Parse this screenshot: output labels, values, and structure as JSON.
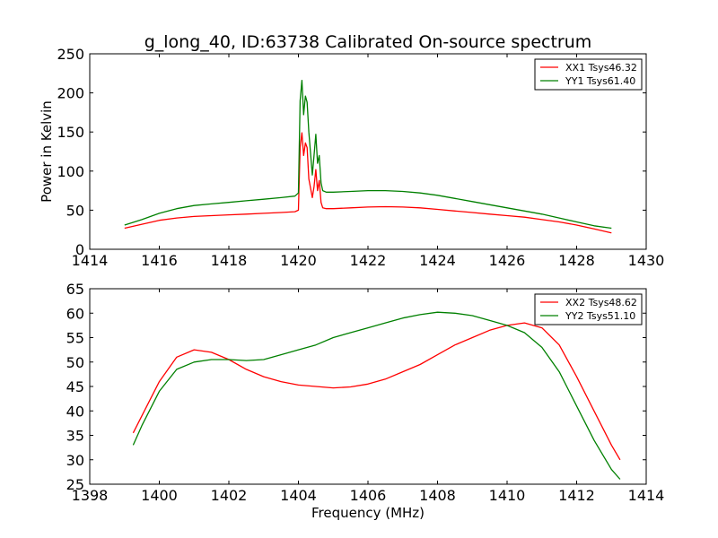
{
  "figure": {
    "title": "g_long_40, ID:63738 Calibrated On-source spectrum",
    "xlabel": "Frequency (MHz)"
  },
  "chart_data": [
    {
      "type": "line",
      "title": "g_long_40, ID:63738 Calibrated On-source spectrum",
      "xlabel": "",
      "ylabel": "Power in Kelvin",
      "xlim": [
        1414,
        1430
      ],
      "ylim": [
        0,
        250
      ],
      "xticks": [
        1414,
        1416,
        1418,
        1420,
        1422,
        1424,
        1426,
        1428,
        1430
      ],
      "yticks": [
        0,
        50,
        100,
        150,
        200,
        250
      ],
      "legend_position": "top-right",
      "grid": false,
      "series": [
        {
          "name": "XX1 Tsys46.32",
          "color": "#ff0000",
          "x": [
            1415.0,
            1415.5,
            1416.0,
            1416.5,
            1417.0,
            1417.5,
            1418.0,
            1418.5,
            1419.0,
            1419.5,
            1419.9,
            1420.0,
            1420.05,
            1420.1,
            1420.15,
            1420.2,
            1420.25,
            1420.3,
            1420.4,
            1420.45,
            1420.5,
            1420.55,
            1420.6,
            1420.65,
            1420.7,
            1420.8,
            1421.0,
            1421.5,
            1422.0,
            1422.5,
            1423.0,
            1423.5,
            1424.0,
            1424.5,
            1425.0,
            1425.5,
            1426.0,
            1426.5,
            1427.0,
            1427.5,
            1428.0,
            1428.5,
            1429.0
          ],
          "y": [
            27,
            32,
            37,
            40,
            42,
            43,
            44,
            45,
            46,
            47,
            48,
            50,
            130,
            149,
            120,
            136,
            130,
            90,
            66,
            80,
            102,
            75,
            88,
            60,
            53,
            52,
            52,
            53,
            54,
            54.5,
            54,
            53,
            51,
            49,
            47,
            45,
            43,
            41,
            38,
            35,
            31,
            26,
            21
          ]
        },
        {
          "name": "YY1 Tsys61.40",
          "color": "#008000",
          "x": [
            1415.0,
            1415.5,
            1416.0,
            1416.5,
            1417.0,
            1417.5,
            1418.0,
            1418.5,
            1419.0,
            1419.5,
            1419.9,
            1420.0,
            1420.05,
            1420.1,
            1420.15,
            1420.2,
            1420.25,
            1420.3,
            1420.4,
            1420.45,
            1420.5,
            1420.55,
            1420.6,
            1420.65,
            1420.7,
            1420.8,
            1421.0,
            1421.5,
            1422.0,
            1422.5,
            1423.0,
            1423.5,
            1424.0,
            1424.5,
            1425.0,
            1425.5,
            1426.0,
            1426.5,
            1427.0,
            1427.5,
            1428.0,
            1428.5,
            1429.0
          ],
          "y": [
            31,
            38,
            46,
            52,
            56,
            58,
            60,
            62,
            64,
            66,
            68,
            72,
            190,
            216,
            172,
            196,
            188,
            150,
            95,
            120,
            147,
            110,
            120,
            85,
            75,
            73,
            73,
            74,
            75,
            75,
            74,
            72,
            69,
            65,
            61,
            57,
            53,
            49,
            45,
            40,
            35,
            30,
            27
          ]
        }
      ]
    },
    {
      "type": "line",
      "title": "",
      "xlabel": "Frequency (MHz)",
      "ylabel": "",
      "xlim": [
        1398,
        1414
      ],
      "ylim": [
        25,
        65
      ],
      "xticks": [
        1398,
        1400,
        1402,
        1404,
        1406,
        1408,
        1410,
        1412,
        1414
      ],
      "yticks": [
        25,
        30,
        35,
        40,
        45,
        50,
        55,
        60,
        65
      ],
      "legend_position": "top-right",
      "grid": false,
      "series": [
        {
          "name": "XX2 Tsys48.62",
          "color": "#ff0000",
          "x": [
            1399.25,
            1399.5,
            1400.0,
            1400.5,
            1401.0,
            1401.5,
            1402.0,
            1402.5,
            1403.0,
            1403.5,
            1404.0,
            1404.5,
            1405.0,
            1405.5,
            1406.0,
            1406.5,
            1407.0,
            1407.5,
            1408.0,
            1408.5,
            1409.0,
            1409.5,
            1410.0,
            1410.5,
            1411.0,
            1411.5,
            1412.0,
            1412.5,
            1413.0,
            1413.25
          ],
          "y": [
            35.5,
            39,
            46,
            51,
            52.5,
            52,
            50.5,
            48.5,
            47,
            46,
            45.3,
            45,
            44.7,
            44.9,
            45.5,
            46.5,
            48,
            49.5,
            51.5,
            53.5,
            55,
            56.5,
            57.5,
            58,
            57,
            53.5,
            47,
            40,
            33,
            30
          ]
        },
        {
          "name": "YY2 Tsys51.10",
          "color": "#008000",
          "x": [
            1399.25,
            1399.5,
            1400.0,
            1400.5,
            1401.0,
            1401.5,
            1402.0,
            1402.5,
            1403.0,
            1403.5,
            1404.0,
            1404.5,
            1405.0,
            1405.5,
            1406.0,
            1406.5,
            1407.0,
            1407.5,
            1408.0,
            1408.5,
            1409.0,
            1409.5,
            1410.0,
            1410.5,
            1411.0,
            1411.5,
            1412.0,
            1412.5,
            1413.0,
            1413.25
          ],
          "y": [
            33,
            37,
            44,
            48.5,
            50,
            50.5,
            50.5,
            50.3,
            50.5,
            51.5,
            52.5,
            53.5,
            55,
            56,
            57,
            58,
            59,
            59.7,
            60.2,
            60,
            59.5,
            58.5,
            57.5,
            56,
            53,
            48,
            41,
            34,
            28,
            26
          ]
        }
      ]
    }
  ]
}
